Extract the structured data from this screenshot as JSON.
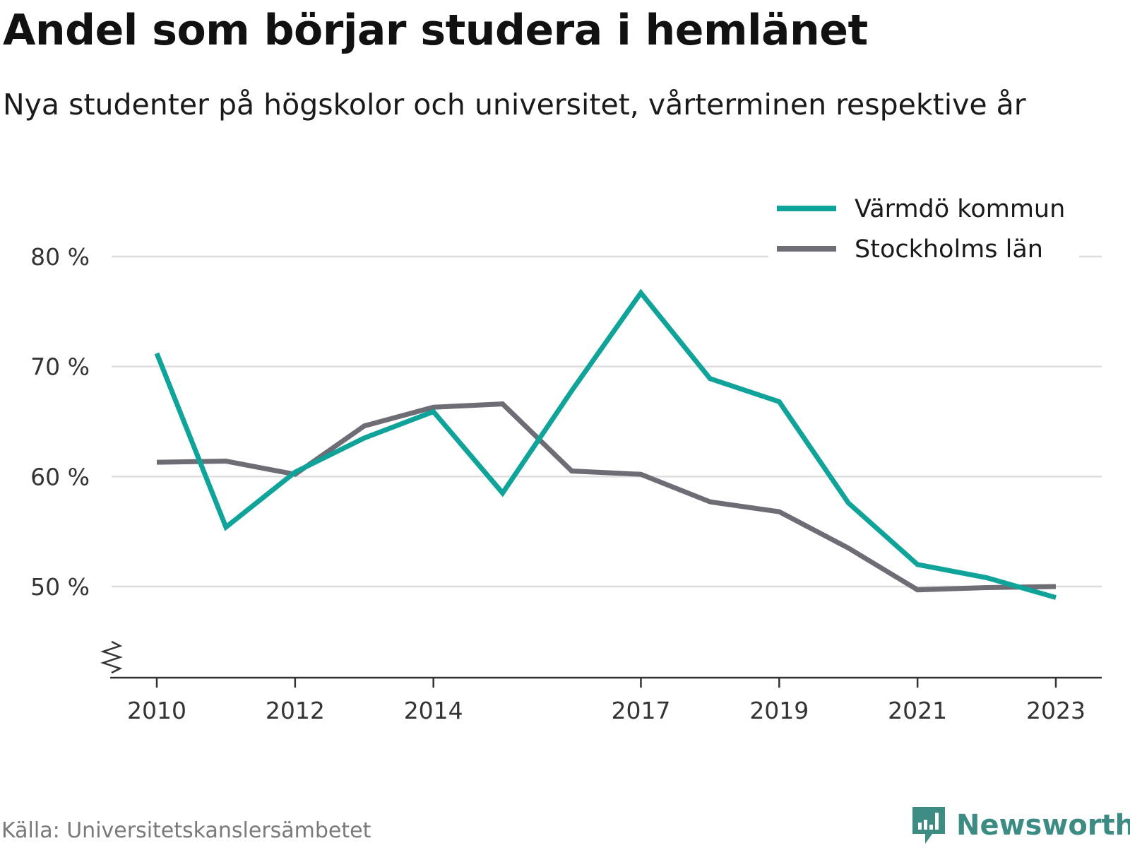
{
  "title": "Andel som börjar studera i hemlänet",
  "subtitle": "Nya studenter på högskolor och universitet, vårterminen respektive år",
  "source": "Källa: Universitetskanslersämbetet",
  "brand": "Newsworthy",
  "colors": {
    "accent": "#0fa39a",
    "secondary": "#6e6c75",
    "grid": "#dddddd",
    "brand": "#3d8c84"
  },
  "chart_data": {
    "type": "line",
    "x": [
      2010,
      2011,
      2012,
      2013,
      2014,
      2015,
      2016,
      2017,
      2018,
      2019,
      2020,
      2021,
      2022,
      2023
    ],
    "x_tick_labels": [
      "2010",
      "2012",
      "2014",
      "2017",
      "2019",
      "2021",
      "2023"
    ],
    "y_ticks": [
      50,
      60,
      70,
      80
    ],
    "y_tick_labels": [
      "50 %",
      "60 %",
      "70 %",
      "80 %"
    ],
    "ylim": [
      42,
      84
    ],
    "y_axis_broken": true,
    "grid": true,
    "legend_position": "top-right",
    "series": [
      {
        "name": "Värmdö kommun",
        "color": "#0fa39a",
        "values": [
          71.2,
          55.4,
          60.4,
          63.5,
          65.9,
          58.5,
          67.8,
          76.7,
          68.9,
          66.8,
          57.6,
          52.0,
          50.8,
          49.0
        ]
      },
      {
        "name": "Stockholms län",
        "color": "#6e6c75",
        "values": [
          61.3,
          61.4,
          60.2,
          64.6,
          66.3,
          66.6,
          60.5,
          60.2,
          57.7,
          56.8,
          53.5,
          49.7,
          49.9,
          50.0
        ]
      }
    ]
  }
}
